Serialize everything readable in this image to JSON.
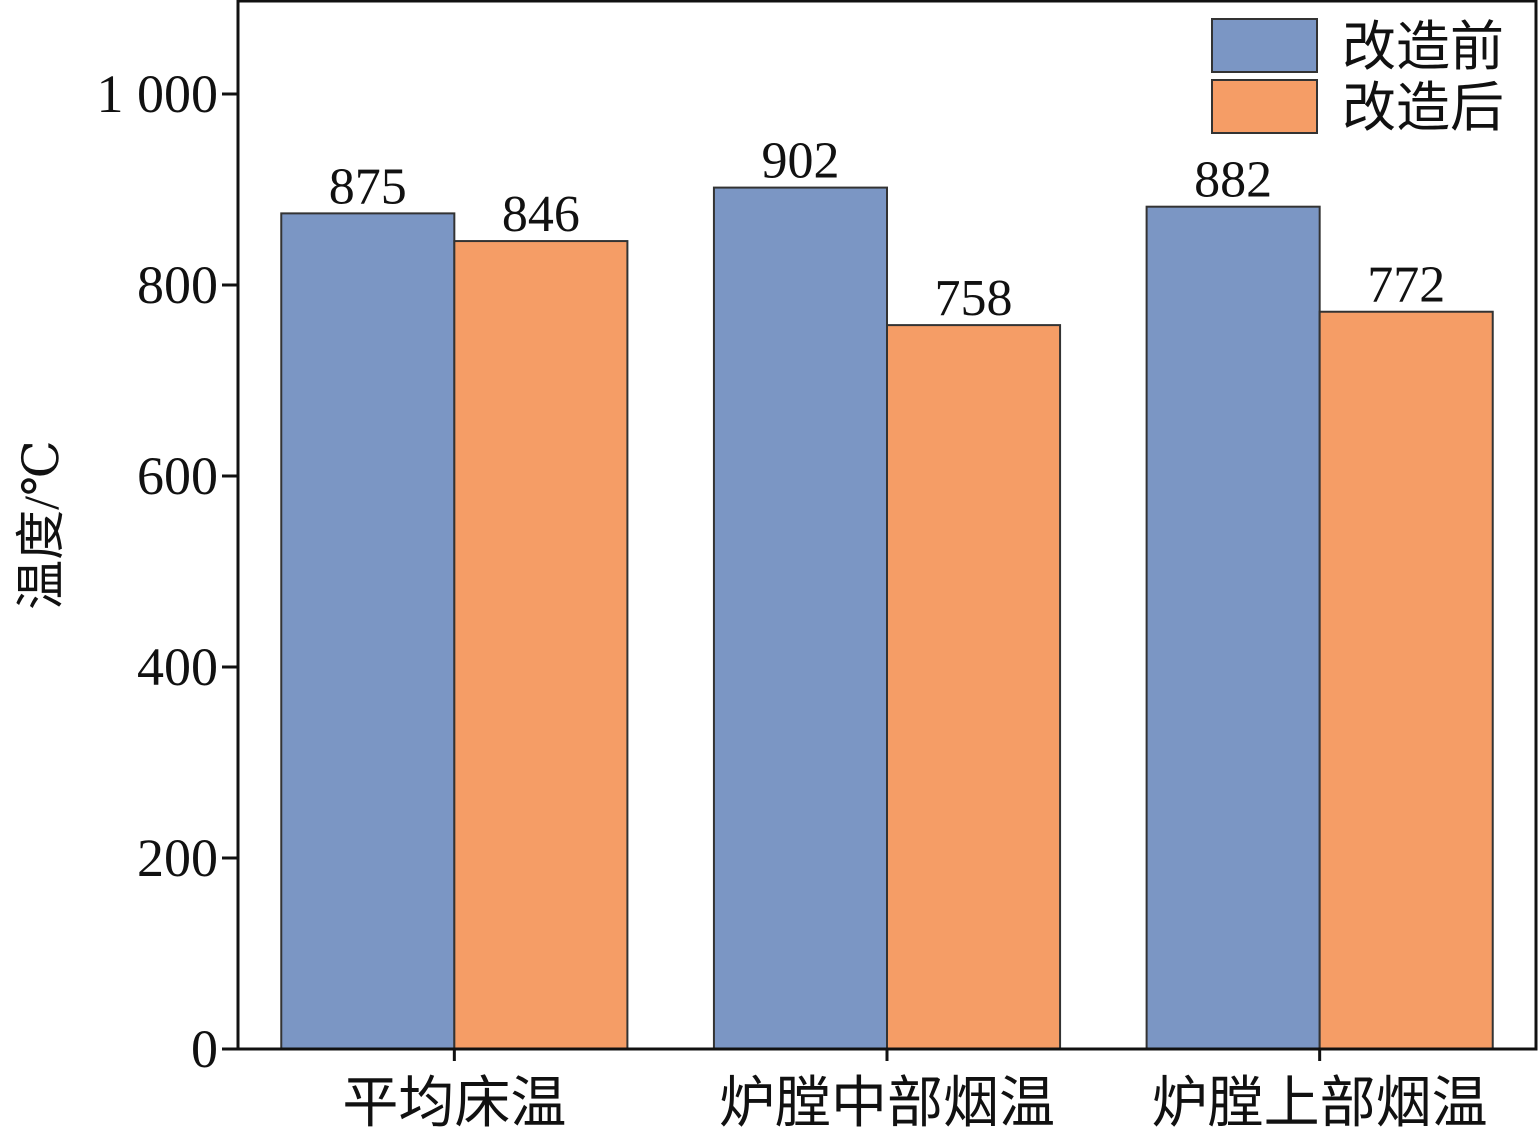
{
  "chart_data": {
    "type": "bar",
    "title": "",
    "xlabel": "",
    "ylabel": "温度/℃",
    "ylim": [
      0,
      1100
    ],
    "yticks": [
      0,
      200,
      400,
      600,
      800,
      1000
    ],
    "ytick_labels": [
      "0",
      "200",
      "400",
      "600",
      "800",
      "1 000"
    ],
    "categories": [
      "平均床温",
      "炉膛中部烟温",
      "炉膛上部烟温"
    ],
    "series": [
      {
        "name": "改造前",
        "values": [
          875,
          902,
          882
        ],
        "color": "#7b96c4"
      },
      {
        "name": "改造后",
        "values": [
          846,
          758,
          772
        ],
        "color": "#f59d66"
      }
    ],
    "data_labels": true,
    "grid": false,
    "legend_position": "top-right"
  }
}
